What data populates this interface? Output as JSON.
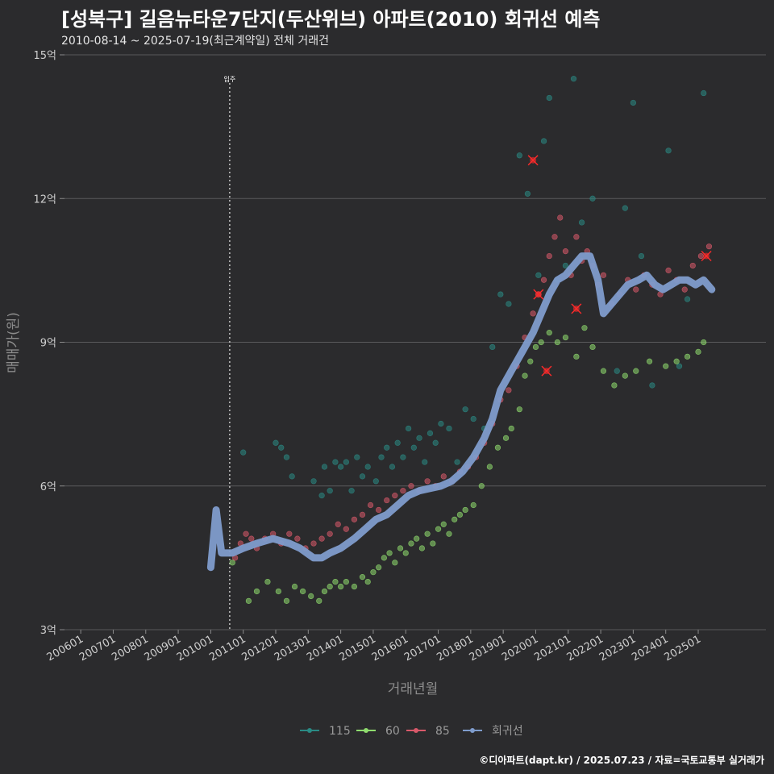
{
  "header": {
    "title": "[성북구] 길음뉴타운7단지(두산위브) 아파트(2010) 회귀선 예측",
    "subtitle": "2010-08-14 ~ 2025-07-19(최근계약일) 전체 거래건"
  },
  "footer": {
    "credit": "©디아파트(dapt.kr) / 2025.07.23 / 자료=국토교통부 실거래가"
  },
  "chart_data": {
    "type": "scatter",
    "xlabel": "거래년월",
    "ylabel": "매매가(원)",
    "ylim": [
      3,
      15
    ],
    "xlim": [
      "2005-07",
      "2027-02"
    ],
    "yticks": [
      {
        "v": 3,
        "label": "3억"
      },
      {
        "v": 6,
        "label": "6억"
      },
      {
        "v": 9,
        "label": "9억"
      },
      {
        "v": 12,
        "label": "12억"
      },
      {
        "v": 15,
        "label": "15억"
      }
    ],
    "xticks": [
      "200601",
      "200701",
      "200801",
      "200901",
      "201001",
      "201101",
      "201201",
      "201301",
      "201401",
      "201501",
      "201601",
      "201701",
      "201801",
      "201901",
      "202001",
      "202101",
      "202201",
      "202301",
      "202401",
      "202501"
    ],
    "grid": true,
    "legend_position": "bottom",
    "annotation": {
      "x": "2010-08",
      "label": "입주"
    },
    "colors": {
      "115": "#2a8a84",
      "60": "#8fdc6e",
      "85": "#d9596a",
      "회귀선": "#7f9ccc",
      "highlight": "#ff2a2a"
    },
    "series": [
      {
        "name": "115",
        "type": "scatter",
        "points": [
          [
            "2011-01",
            6.7
          ],
          [
            "2012-01",
            6.9
          ],
          [
            "2012-03",
            6.8
          ],
          [
            "2012-05",
            6.6
          ],
          [
            "2012-07",
            6.2
          ],
          [
            "2013-03",
            6.1
          ],
          [
            "2013-06",
            5.8
          ],
          [
            "2013-07",
            6.4
          ],
          [
            "2013-09",
            5.9
          ],
          [
            "2013-11",
            6.5
          ],
          [
            "2014-01",
            6.4
          ],
          [
            "2014-03",
            6.5
          ],
          [
            "2014-05",
            5.9
          ],
          [
            "2014-07",
            6.6
          ],
          [
            "2014-09",
            6.2
          ],
          [
            "2014-11",
            6.4
          ],
          [
            "2015-02",
            6.1
          ],
          [
            "2015-04",
            6.6
          ],
          [
            "2015-06",
            6.8
          ],
          [
            "2015-08",
            6.4
          ],
          [
            "2015-10",
            6.9
          ],
          [
            "2015-12",
            6.6
          ],
          [
            "2016-02",
            7.2
          ],
          [
            "2016-04",
            6.8
          ],
          [
            "2016-06",
            7.0
          ],
          [
            "2016-08",
            6.5
          ],
          [
            "2016-10",
            7.1
          ],
          [
            "2016-12",
            6.9
          ],
          [
            "2017-02",
            7.3
          ],
          [
            "2017-05",
            7.2
          ],
          [
            "2017-08",
            6.5
          ],
          [
            "2017-11",
            7.6
          ],
          [
            "2018-02",
            7.4
          ],
          [
            "2018-06",
            7.2
          ],
          [
            "2018-09",
            8.9
          ],
          [
            "2018-12",
            10.0
          ],
          [
            "2019-03",
            9.8
          ],
          [
            "2019-07",
            12.9
          ],
          [
            "2019-10",
            12.1
          ],
          [
            "2020-02",
            10.4
          ],
          [
            "2020-04",
            13.2
          ],
          [
            "2020-06",
            14.1
          ],
          [
            "2020-09",
            10.3
          ],
          [
            "2020-12",
            10.6
          ],
          [
            "2021-03",
            14.5
          ],
          [
            "2021-06",
            11.5
          ],
          [
            "2021-10",
            12.0
          ],
          [
            "2022-07",
            8.4
          ],
          [
            "2022-10",
            11.8
          ],
          [
            "2023-01",
            14.0
          ],
          [
            "2023-04",
            10.8
          ],
          [
            "2023-08",
            8.1
          ],
          [
            "2024-02",
            13.0
          ],
          [
            "2024-06",
            8.5
          ],
          [
            "2024-09",
            9.9
          ],
          [
            "2025-03",
            14.2
          ]
        ]
      },
      {
        "name": "60",
        "type": "scatter",
        "points": [
          [
            "2010-09",
            4.4
          ],
          [
            "2011-03",
            3.6
          ],
          [
            "2011-06",
            3.8
          ],
          [
            "2011-10",
            4.0
          ],
          [
            "2012-02",
            3.8
          ],
          [
            "2012-05",
            3.6
          ],
          [
            "2012-08",
            3.9
          ],
          [
            "2012-11",
            3.8
          ],
          [
            "2013-02",
            3.7
          ],
          [
            "2013-05",
            3.6
          ],
          [
            "2013-07",
            3.8
          ],
          [
            "2013-09",
            3.9
          ],
          [
            "2013-11",
            4.0
          ],
          [
            "2014-01",
            3.9
          ],
          [
            "2014-03",
            4.0
          ],
          [
            "2014-06",
            3.9
          ],
          [
            "2014-09",
            4.1
          ],
          [
            "2014-11",
            4.0
          ],
          [
            "2015-01",
            4.2
          ],
          [
            "2015-03",
            4.3
          ],
          [
            "2015-05",
            4.5
          ],
          [
            "2015-07",
            4.6
          ],
          [
            "2015-09",
            4.4
          ],
          [
            "2015-11",
            4.7
          ],
          [
            "2016-01",
            4.6
          ],
          [
            "2016-03",
            4.8
          ],
          [
            "2016-05",
            4.9
          ],
          [
            "2016-07",
            4.7
          ],
          [
            "2016-09",
            5.0
          ],
          [
            "2016-11",
            4.8
          ],
          [
            "2017-01",
            5.1
          ],
          [
            "2017-03",
            5.2
          ],
          [
            "2017-05",
            5.0
          ],
          [
            "2017-07",
            5.3
          ],
          [
            "2017-09",
            5.4
          ],
          [
            "2017-11",
            5.5
          ],
          [
            "2018-02",
            5.6
          ],
          [
            "2018-05",
            6.0
          ],
          [
            "2018-08",
            6.4
          ],
          [
            "2018-11",
            6.8
          ],
          [
            "2019-02",
            7.0
          ],
          [
            "2019-04",
            7.2
          ],
          [
            "2019-07",
            7.6
          ],
          [
            "2019-09",
            8.3
          ],
          [
            "2019-11",
            8.6
          ],
          [
            "2020-01",
            8.9
          ],
          [
            "2020-03",
            9.0
          ],
          [
            "2020-06",
            9.2
          ],
          [
            "2020-09",
            9.0
          ],
          [
            "2020-12",
            9.1
          ],
          [
            "2021-04",
            8.7
          ],
          [
            "2021-07",
            9.3
          ],
          [
            "2021-10",
            8.9
          ],
          [
            "2022-02",
            8.4
          ],
          [
            "2022-06",
            8.1
          ],
          [
            "2022-10",
            8.3
          ],
          [
            "2023-02",
            8.4
          ],
          [
            "2023-07",
            8.6
          ],
          [
            "2024-01",
            8.5
          ],
          [
            "2024-05",
            8.6
          ],
          [
            "2024-09",
            8.7
          ],
          [
            "2025-01",
            8.8
          ],
          [
            "2025-03",
            9.0
          ]
        ]
      },
      {
        "name": "85",
        "type": "scatter",
        "points": [
          [
            "2010-10",
            4.5
          ],
          [
            "2010-12",
            4.8
          ],
          [
            "2011-02",
            5.0
          ],
          [
            "2011-04",
            4.9
          ],
          [
            "2011-06",
            4.7
          ],
          [
            "2011-09",
            4.9
          ],
          [
            "2011-12",
            5.0
          ],
          [
            "2012-03",
            4.8
          ],
          [
            "2012-06",
            5.0
          ],
          [
            "2012-09",
            4.9
          ],
          [
            "2012-12",
            4.7
          ],
          [
            "2013-03",
            4.8
          ],
          [
            "2013-06",
            4.9
          ],
          [
            "2013-09",
            5.0
          ],
          [
            "2013-12",
            5.2
          ],
          [
            "2014-03",
            5.1
          ],
          [
            "2014-06",
            5.3
          ],
          [
            "2014-09",
            5.4
          ],
          [
            "2014-12",
            5.6
          ],
          [
            "2015-03",
            5.5
          ],
          [
            "2015-06",
            5.7
          ],
          [
            "2015-09",
            5.8
          ],
          [
            "2015-12",
            5.9
          ],
          [
            "2016-03",
            6.0
          ],
          [
            "2016-06",
            5.9
          ],
          [
            "2016-09",
            6.1
          ],
          [
            "2016-12",
            6.0
          ],
          [
            "2017-03",
            6.2
          ],
          [
            "2017-06",
            6.1
          ],
          [
            "2017-09",
            6.3
          ],
          [
            "2017-12",
            6.4
          ],
          [
            "2018-03",
            6.6
          ],
          [
            "2018-06",
            6.9
          ],
          [
            "2018-09",
            7.3
          ],
          [
            "2018-12",
            7.8
          ],
          [
            "2019-03",
            8.0
          ],
          [
            "2019-06",
            8.5
          ],
          [
            "2019-09",
            9.1
          ],
          [
            "2019-12",
            9.6
          ],
          [
            "2020-02",
            10.0
          ],
          [
            "2020-04",
            10.3
          ],
          [
            "2020-06",
            10.8
          ],
          [
            "2020-08",
            11.2
          ],
          [
            "2020-10",
            11.6
          ],
          [
            "2020-12",
            10.9
          ],
          [
            "2021-02",
            10.4
          ],
          [
            "2021-04",
            11.2
          ],
          [
            "2021-06",
            10.7
          ],
          [
            "2021-08",
            10.9
          ],
          [
            "2021-10",
            10.6
          ],
          [
            "2021-12",
            10.2
          ],
          [
            "2022-02",
            10.4
          ],
          [
            "2022-05",
            9.8
          ],
          [
            "2022-08",
            10.0
          ],
          [
            "2022-11",
            10.3
          ],
          [
            "2023-02",
            10.1
          ],
          [
            "2023-05",
            10.4
          ],
          [
            "2023-08",
            10.2
          ],
          [
            "2023-11",
            10.0
          ],
          [
            "2024-02",
            10.5
          ],
          [
            "2024-05",
            10.3
          ],
          [
            "2024-08",
            10.1
          ],
          [
            "2024-11",
            10.6
          ],
          [
            "2025-02",
            10.8
          ],
          [
            "2025-05",
            11.0
          ]
        ]
      },
      {
        "name": "회귀선",
        "type": "line",
        "points": [
          [
            "2010-01",
            4.3
          ],
          [
            "2010-03",
            5.5
          ],
          [
            "2010-05",
            4.6
          ],
          [
            "2010-09",
            4.6
          ],
          [
            "2011-01",
            4.7
          ],
          [
            "2011-06",
            4.8
          ],
          [
            "2011-12",
            4.9
          ],
          [
            "2012-06",
            4.8
          ],
          [
            "2012-10",
            4.7
          ],
          [
            "2013-03",
            4.5
          ],
          [
            "2013-06",
            4.5
          ],
          [
            "2013-09",
            4.6
          ],
          [
            "2014-01",
            4.7
          ],
          [
            "2014-06",
            4.9
          ],
          [
            "2014-10",
            5.1
          ],
          [
            "2015-02",
            5.3
          ],
          [
            "2015-06",
            5.4
          ],
          [
            "2015-10",
            5.6
          ],
          [
            "2016-02",
            5.8
          ],
          [
            "2016-06",
            5.9
          ],
          [
            "2016-10",
            5.95
          ],
          [
            "2017-02",
            6.0
          ],
          [
            "2017-06",
            6.1
          ],
          [
            "2017-10",
            6.3
          ],
          [
            "2018-02",
            6.6
          ],
          [
            "2018-06",
            7.0
          ],
          [
            "2018-09",
            7.4
          ],
          [
            "2018-12",
            8.0
          ],
          [
            "2019-04",
            8.4
          ],
          [
            "2019-08",
            8.8
          ],
          [
            "2019-12",
            9.2
          ],
          [
            "2020-03",
            9.6
          ],
          [
            "2020-06",
            10.0
          ],
          [
            "2020-09",
            10.3
          ],
          [
            "2020-12",
            10.4
          ],
          [
            "2021-03",
            10.6
          ],
          [
            "2021-06",
            10.8
          ],
          [
            "2021-09",
            10.8
          ],
          [
            "2021-12",
            10.3
          ],
          [
            "2022-02",
            9.6
          ],
          [
            "2022-05",
            9.8
          ],
          [
            "2022-08",
            10.0
          ],
          [
            "2022-11",
            10.2
          ],
          [
            "2023-03",
            10.3
          ],
          [
            "2023-06",
            10.4
          ],
          [
            "2023-09",
            10.2
          ],
          [
            "2023-12",
            10.1
          ],
          [
            "2024-03",
            10.2
          ],
          [
            "2024-06",
            10.3
          ],
          [
            "2024-09",
            10.3
          ],
          [
            "2024-12",
            10.2
          ],
          [
            "2025-03",
            10.3
          ],
          [
            "2025-06",
            10.1
          ]
        ]
      }
    ],
    "highlights": [
      [
        "2019-12",
        12.8
      ],
      [
        "2020-02",
        10.0
      ],
      [
        "2020-05",
        8.4
      ],
      [
        "2021-04",
        9.7
      ],
      [
        "2025-04",
        10.8
      ]
    ]
  }
}
